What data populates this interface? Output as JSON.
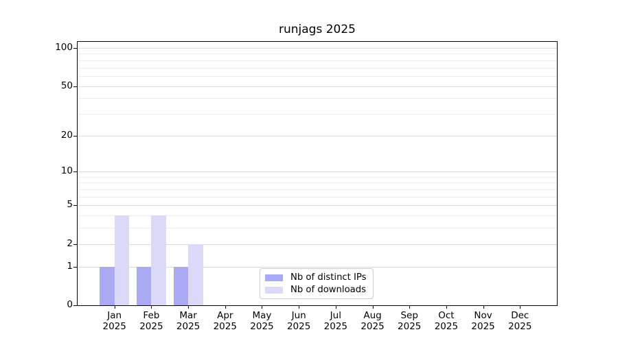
{
  "title": "runjags 2025",
  "colors": {
    "distinct_ips": "#a9a9f4",
    "downloads": "#dadaf8",
    "grid_major": "#d8d8d8",
    "grid_minor": "#ececec",
    "axis": "#000000",
    "legend_border": "#cccccc",
    "background": "#ffffff"
  },
  "chart_data": {
    "type": "bar",
    "title": "runjags 2025",
    "categories": [
      "Jan",
      "Feb",
      "Mar",
      "Apr",
      "May",
      "Jun",
      "Jul",
      "Aug",
      "Sep",
      "Oct",
      "Nov",
      "Dec"
    ],
    "x_year": "2025",
    "series": [
      {
        "name": "Nb of distinct IPs",
        "color": "#a9a9f4",
        "values": [
          1,
          1,
          1,
          0,
          0,
          0,
          0,
          0,
          0,
          0,
          0,
          0
        ]
      },
      {
        "name": "Nb of downloads",
        "color": "#dadaf8",
        "values": [
          4,
          4,
          2,
          0,
          0,
          0,
          0,
          0,
          0,
          0,
          0,
          0
        ]
      }
    ],
    "y_ticks": [
      0,
      1,
      2,
      5,
      10,
      20,
      50,
      100
    ],
    "y_minor_gridlines": [
      3,
      4,
      6,
      7,
      8,
      9,
      30,
      40,
      60,
      70,
      80,
      90
    ],
    "scale": "log1p",
    "ylim": [
      0,
      100
    ],
    "xlabel": "",
    "ylabel": "",
    "grid": true,
    "legend_position": "bottom-center"
  }
}
